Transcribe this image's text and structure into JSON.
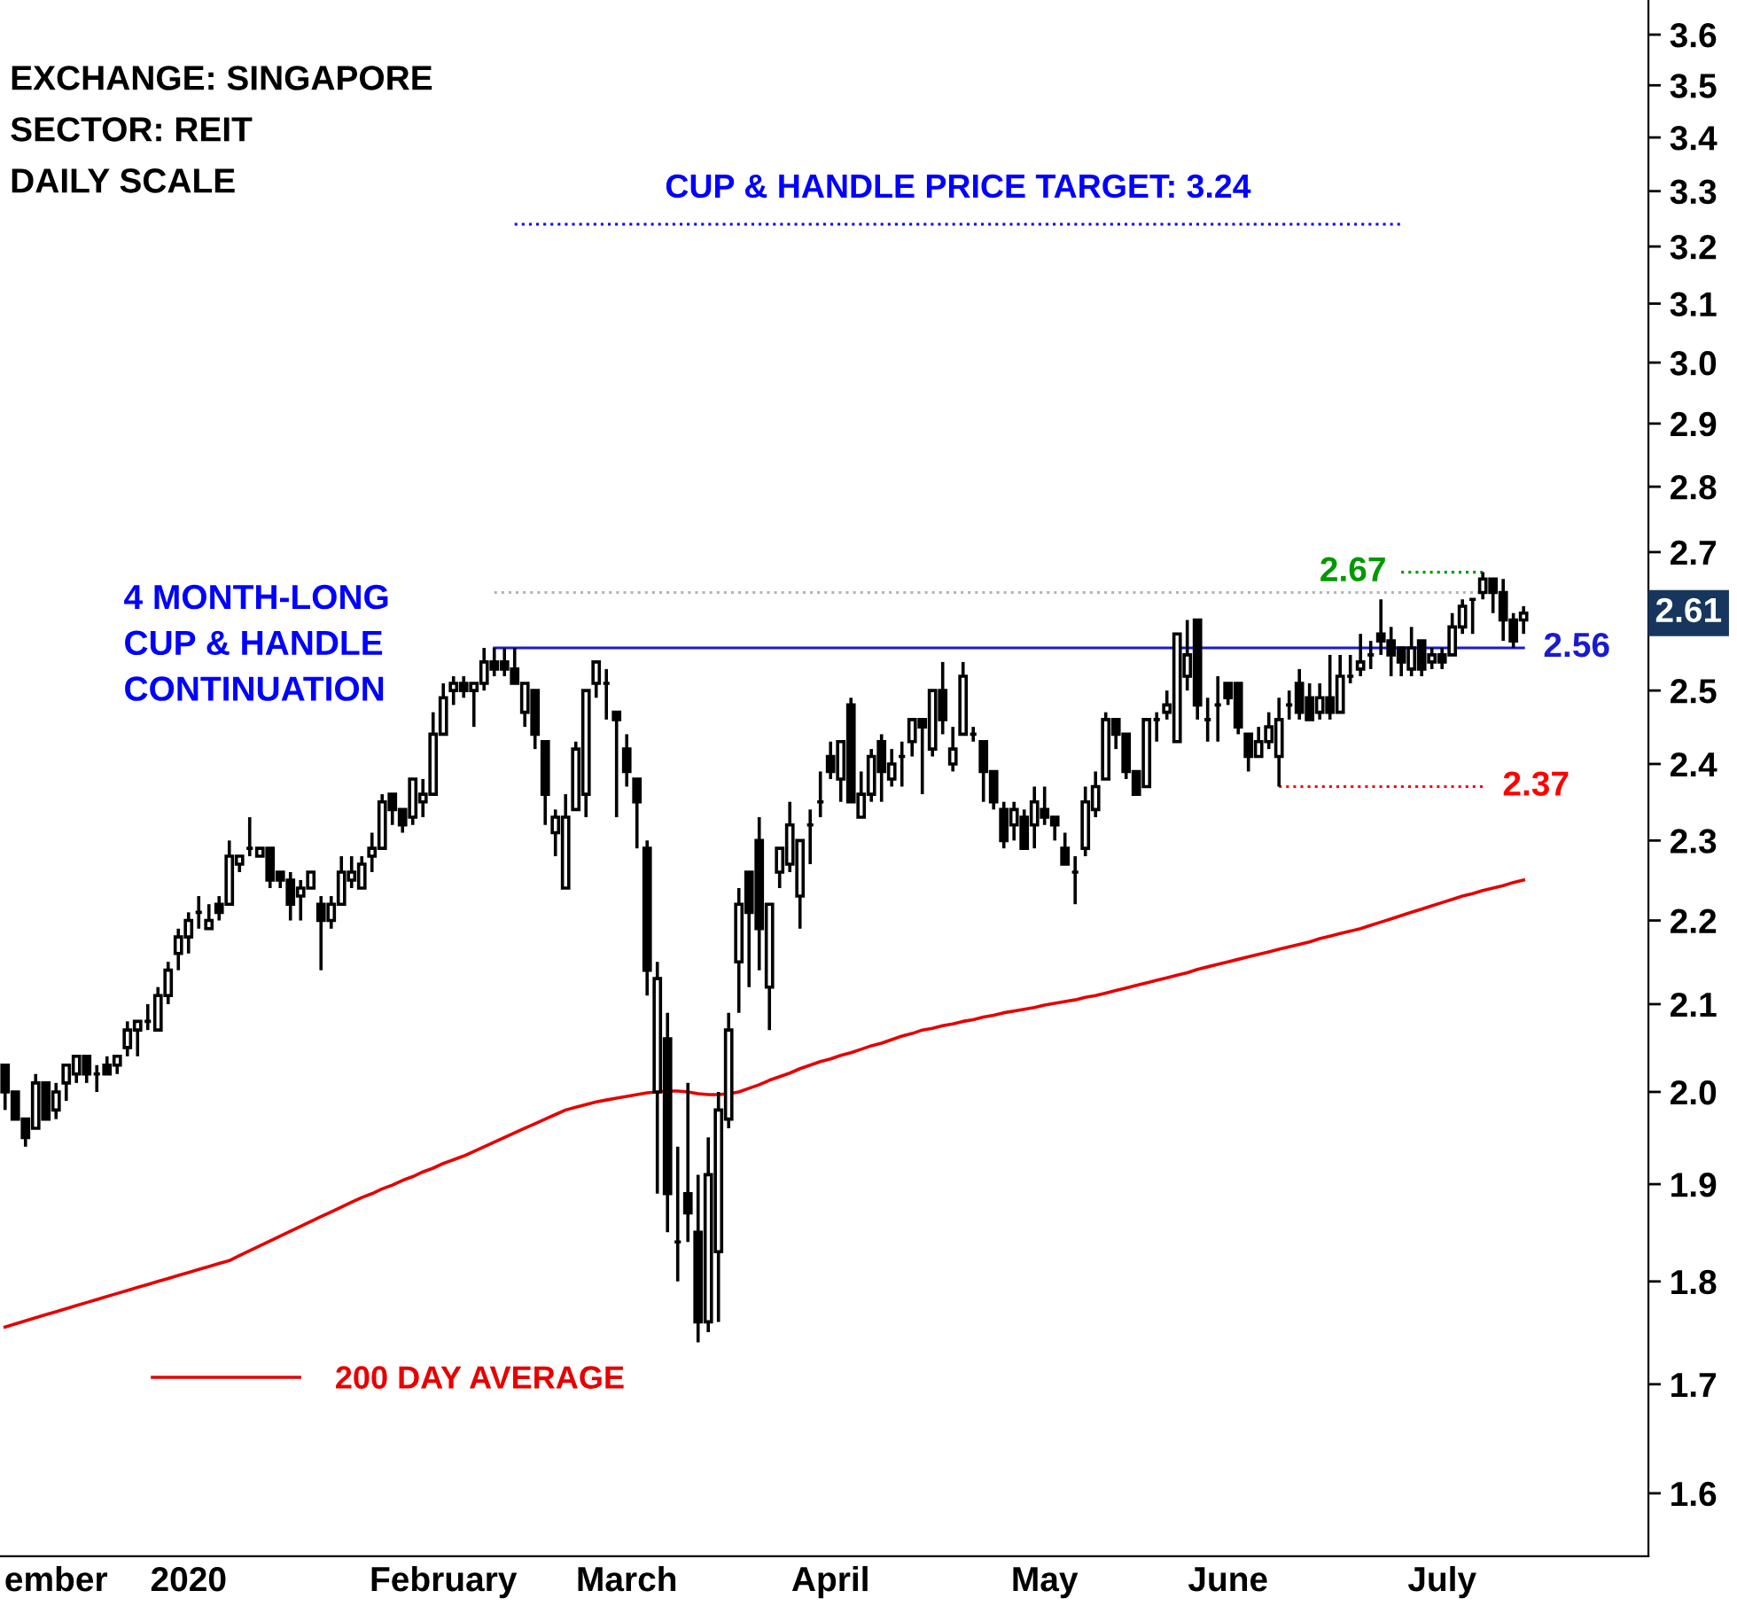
{
  "chart_data": {
    "type": "candlestick",
    "categories": [
      null,
      null,
      null,
      null,
      null,
      "ember",
      null,
      null,
      null,
      null,
      null,
      null,
      null,
      null,
      null,
      null,
      null,
      null,
      "2020",
      null,
      null,
      null,
      null,
      null,
      null,
      null,
      null,
      null,
      null,
      null,
      null,
      null,
      null,
      null,
      null,
      null,
      null,
      null,
      null,
      null,
      null,
      null,
      null,
      "February",
      null,
      null,
      null,
      null,
      null,
      null,
      null,
      null,
      null,
      null,
      null,
      null,
      null,
      null,
      null,
      null,
      null,
      "March",
      null,
      null,
      null,
      null,
      null,
      null,
      null,
      null,
      null,
      null,
      null,
      null,
      null,
      null,
      null,
      null,
      null,
      null,
      null,
      "April",
      null,
      null,
      null,
      null,
      null,
      null,
      null,
      null,
      null,
      null,
      null,
      null,
      null,
      null,
      null,
      null,
      null,
      null,
      null,
      null,
      "May",
      null,
      null,
      null,
      null,
      null,
      null,
      null,
      null,
      null,
      null,
      null,
      null,
      null,
      null,
      null,
      null,
      null,
      "June",
      null,
      null,
      null,
      null,
      null,
      null,
      null,
      null,
      null,
      null,
      null,
      null,
      null,
      null,
      null,
      null,
      null,
      null,
      null,
      null,
      "July",
      null,
      null,
      null,
      null,
      null,
      null,
      null,
      null
    ],
    "ohlc": [
      [
        2.03,
        2.03,
        1.98,
        2.0
      ],
      [
        2.0,
        2.0,
        1.97,
        1.97
      ],
      [
        1.97,
        1.97,
        1.94,
        1.95
      ],
      [
        1.96,
        2.02,
        1.96,
        2.01
      ],
      [
        2.01,
        2.01,
        1.97,
        1.97
      ],
      [
        1.98,
        2.01,
        1.97,
        2.0
      ],
      [
        2.01,
        2.03,
        1.99,
        2.03
      ],
      [
        2.02,
        2.04,
        2.01,
        2.04
      ],
      [
        2.04,
        2.04,
        2.01,
        2.02
      ],
      [
        2.02,
        2.03,
        2.0,
        2.02
      ],
      [
        2.03,
        2.04,
        2.02,
        2.02
      ],
      [
        2.03,
        2.04,
        2.02,
        2.04
      ],
      [
        2.05,
        2.08,
        2.04,
        2.07
      ],
      [
        2.07,
        2.08,
        2.04,
        2.08
      ],
      [
        2.08,
        2.1,
        2.07,
        2.08
      ],
      [
        2.07,
        2.12,
        2.07,
        2.11
      ],
      [
        2.11,
        2.15,
        2.1,
        2.14
      ],
      [
        2.16,
        2.19,
        2.14,
        2.18
      ],
      [
        2.18,
        2.21,
        2.16,
        2.2
      ],
      [
        2.21,
        2.23,
        2.19,
        2.21
      ],
      [
        2.19,
        2.22,
        2.19,
        2.2
      ],
      [
        2.22,
        2.23,
        2.2,
        2.21
      ],
      [
        2.22,
        2.3,
        2.22,
        2.28
      ],
      [
        2.27,
        2.28,
        2.26,
        2.28
      ],
      [
        2.29,
        2.33,
        2.28,
        2.29
      ],
      [
        2.28,
        2.29,
        2.28,
        2.29
      ],
      [
        2.29,
        2.29,
        2.24,
        2.25
      ],
      [
        2.26,
        2.26,
        2.24,
        2.25
      ],
      [
        2.25,
        2.26,
        2.2,
        2.22
      ],
      [
        2.23,
        2.25,
        2.2,
        2.24
      ],
      [
        2.24,
        2.26,
        2.24,
        2.26
      ],
      [
        2.22,
        2.23,
        2.14,
        2.2
      ],
      [
        2.2,
        2.23,
        2.19,
        2.22
      ],
      [
        2.22,
        2.28,
        2.22,
        2.26
      ],
      [
        2.25,
        2.28,
        2.24,
        2.26
      ],
      [
        2.24,
        2.28,
        2.24,
        2.27
      ],
      [
        2.28,
        2.31,
        2.26,
        2.29
      ],
      [
        2.29,
        2.36,
        2.29,
        2.35
      ],
      [
        2.36,
        2.36,
        2.32,
        2.34
      ],
      [
        2.34,
        2.34,
        2.31,
        2.32
      ],
      [
        2.33,
        2.38,
        2.32,
        2.38
      ],
      [
        2.35,
        2.38,
        2.33,
        2.36
      ],
      [
        2.36,
        2.47,
        2.36,
        2.44
      ],
      [
        2.44,
        2.51,
        2.44,
        2.49
      ],
      [
        2.5,
        2.52,
        2.48,
        2.51
      ],
      [
        2.51,
        2.52,
        2.49,
        2.5
      ],
      [
        2.5,
        2.51,
        2.45,
        2.51
      ],
      [
        2.51,
        2.56,
        2.5,
        2.54
      ],
      [
        2.54,
        2.56,
        2.52,
        2.53
      ],
      [
        2.54,
        2.56,
        2.52,
        2.53
      ],
      [
        2.53,
        2.56,
        2.51,
        2.51
      ],
      [
        2.47,
        2.51,
        2.45,
        2.51
      ],
      [
        2.5,
        2.5,
        2.42,
        2.44
      ],
      [
        2.43,
        2.43,
        2.32,
        2.36
      ],
      [
        2.31,
        2.34,
        2.28,
        2.33
      ],
      [
        2.24,
        2.36,
        2.24,
        2.33
      ],
      [
        2.34,
        2.43,
        2.34,
        2.42
      ],
      [
        2.36,
        2.5,
        2.33,
        2.5
      ],
      [
        2.51,
        2.54,
        2.49,
        2.54
      ],
      [
        2.51,
        2.53,
        2.46,
        2.51
      ],
      [
        2.47,
        2.47,
        2.33,
        2.46
      ],
      [
        2.42,
        2.44,
        2.37,
        2.39
      ],
      [
        2.38,
        2.38,
        2.29,
        2.35
      ],
      [
        2.29,
        2.3,
        2.11,
        2.14
      ],
      [
        2.0,
        2.15,
        1.89,
        2.13
      ],
      [
        2.06,
        2.09,
        1.85,
        1.89
      ],
      [
        1.84,
        1.94,
        1.8,
        1.84
      ],
      [
        1.89,
        2.01,
        1.84,
        1.87
      ],
      [
        1.85,
        1.91,
        1.74,
        1.76
      ],
      [
        1.76,
        1.95,
        1.75,
        1.91
      ],
      [
        1.83,
        2.0,
        1.76,
        1.98
      ],
      [
        1.97,
        2.09,
        1.96,
        2.07
      ],
      [
        2.15,
        2.24,
        2.09,
        2.22
      ],
      [
        2.26,
        2.26,
        2.12,
        2.21
      ],
      [
        2.3,
        2.33,
        2.14,
        2.19
      ],
      [
        2.12,
        2.22,
        2.07,
        2.22
      ],
      [
        2.26,
        2.29,
        2.24,
        2.29
      ],
      [
        2.27,
        2.35,
        2.26,
        2.32
      ],
      [
        2.23,
        2.3,
        2.19,
        2.3
      ],
      [
        2.32,
        2.34,
        2.27,
        2.32
      ],
      [
        2.35,
        2.39,
        2.33,
        2.35
      ],
      [
        2.41,
        2.43,
        2.38,
        2.39
      ],
      [
        2.38,
        2.43,
        2.35,
        2.43
      ],
      [
        2.48,
        2.49,
        2.35,
        2.35
      ],
      [
        2.33,
        2.39,
        2.33,
        2.36
      ],
      [
        2.36,
        2.42,
        2.35,
        2.41
      ],
      [
        2.43,
        2.44,
        2.35,
        2.39
      ],
      [
        2.38,
        2.42,
        2.37,
        2.4
      ],
      [
        2.41,
        2.43,
        2.37,
        2.41
      ],
      [
        2.43,
        2.46,
        2.41,
        2.46
      ],
      [
        2.46,
        2.46,
        2.36,
        2.45
      ],
      [
        2.42,
        2.5,
        2.41,
        2.5
      ],
      [
        2.5,
        2.54,
        2.44,
        2.46
      ],
      [
        2.4,
        2.45,
        2.39,
        2.42
      ],
      [
        2.44,
        2.54,
        2.44,
        2.52
      ],
      [
        2.44,
        2.45,
        2.43,
        2.44
      ],
      [
        2.43,
        2.43,
        2.35,
        2.39
      ],
      [
        2.39,
        2.39,
        2.34,
        2.35
      ],
      [
        2.34,
        2.35,
        2.29,
        2.3
      ],
      [
        2.32,
        2.35,
        2.3,
        2.34
      ],
      [
        2.33,
        2.34,
        2.29,
        2.29
      ],
      [
        2.32,
        2.37,
        2.29,
        2.35
      ],
      [
        2.34,
        2.37,
        2.32,
        2.33
      ],
      [
        2.33,
        2.33,
        2.3,
        2.32
      ],
      [
        2.29,
        2.31,
        2.27,
        2.27
      ],
      [
        2.26,
        2.28,
        2.22,
        2.26
      ],
      [
        2.29,
        2.37,
        2.28,
        2.35
      ],
      [
        2.34,
        2.39,
        2.33,
        2.37
      ],
      [
        2.38,
        2.47,
        2.38,
        2.46
      ],
      [
        2.46,
        2.46,
        2.42,
        2.44
      ],
      [
        2.44,
        2.44,
        2.38,
        2.39
      ],
      [
        2.39,
        2.39,
        2.36,
        2.36
      ],
      [
        2.37,
        2.46,
        2.37,
        2.46
      ],
      [
        2.46,
        2.47,
        2.43,
        2.46
      ],
      [
        2.47,
        2.5,
        2.46,
        2.48
      ],
      [
        2.43,
        2.58,
        2.43,
        2.58
      ],
      [
        2.52,
        2.6,
        2.5,
        2.55
      ],
      [
        2.6,
        2.6,
        2.46,
        2.48
      ],
      [
        2.46,
        2.49,
        2.43,
        2.46
      ],
      [
        2.48,
        2.52,
        2.43,
        2.48
      ],
      [
        2.51,
        2.51,
        2.48,
        2.49
      ],
      [
        2.51,
        2.51,
        2.44,
        2.45
      ],
      [
        2.44,
        2.44,
        2.39,
        2.41
      ],
      [
        2.41,
        2.45,
        2.41,
        2.43
      ],
      [
        2.43,
        2.47,
        2.42,
        2.45
      ],
      [
        2.41,
        2.49,
        2.37,
        2.46
      ],
      [
        2.48,
        2.5,
        2.46,
        2.48
      ],
      [
        2.51,
        2.53,
        2.46,
        2.47
      ],
      [
        2.49,
        2.51,
        2.46,
        2.46
      ],
      [
        2.47,
        2.51,
        2.46,
        2.49
      ],
      [
        2.49,
        2.55,
        2.46,
        2.47
      ],
      [
        2.47,
        2.55,
        2.47,
        2.52
      ],
      [
        2.52,
        2.55,
        2.51,
        2.52
      ],
      [
        2.53,
        2.58,
        2.52,
        2.54
      ],
      [
        2.55,
        2.57,
        2.53,
        2.55
      ],
      [
        2.58,
        2.63,
        2.55,
        2.57
      ],
      [
        2.57,
        2.59,
        2.52,
        2.55
      ],
      [
        2.56,
        2.56,
        2.52,
        2.54
      ],
      [
        2.53,
        2.59,
        2.52,
        2.56
      ],
      [
        2.57,
        2.57,
        2.52,
        2.53
      ],
      [
        2.54,
        2.56,
        2.53,
        2.55
      ],
      [
        2.55,
        2.56,
        2.53,
        2.54
      ],
      [
        2.55,
        2.61,
        2.55,
        2.59
      ],
      [
        2.59,
        2.63,
        2.58,
        2.62
      ],
      [
        2.63,
        2.63,
        2.58,
        2.63
      ],
      [
        2.64,
        2.67,
        2.63,
        2.66
      ],
      [
        2.66,
        2.66,
        2.61,
        2.64
      ],
      [
        2.64,
        2.66,
        2.57,
        2.6
      ],
      [
        2.6,
        2.61,
        2.56,
        2.57
      ],
      [
        2.6,
        2.62,
        2.58,
        2.61
      ]
    ],
    "series": [
      {
        "type": "line",
        "name": "200 DAY AVERAGE",
        "color": "#e60000",
        "line_style": "solid",
        "values": [
          1.755,
          1.758,
          1.761,
          1.764,
          1.767,
          1.77,
          1.773,
          1.776,
          1.779,
          1.782,
          1.785,
          1.788,
          1.791,
          1.794,
          1.797,
          1.8,
          1.803,
          1.806,
          1.809,
          1.812,
          1.815,
          1.818,
          1.821,
          1.826,
          1.831,
          1.836,
          1.841,
          1.846,
          1.851,
          1.856,
          1.861,
          1.866,
          1.871,
          1.876,
          1.881,
          1.886,
          1.89,
          1.895,
          1.899,
          1.904,
          1.908,
          1.913,
          1.917,
          1.922,
          1.926,
          1.93,
          1.935,
          1.94,
          1.945,
          1.95,
          1.955,
          1.96,
          1.965,
          1.97,
          1.975,
          1.98,
          1.983,
          1.986,
          1.989,
          1.991,
          1.993,
          1.995,
          1.997,
          1.999,
          2.0,
          2.001,
          2.001,
          2.0,
          1.998,
          1.997,
          1.997,
          1.998,
          2.0,
          2.004,
          2.008,
          2.013,
          2.017,
          2.021,
          2.026,
          2.03,
          2.034,
          2.037,
          2.041,
          2.044,
          2.048,
          2.052,
          2.055,
          2.059,
          2.063,
          2.066,
          2.07,
          2.072,
          2.075,
          2.077,
          2.08,
          2.082,
          2.085,
          2.087,
          2.09,
          2.092,
          2.094,
          2.096,
          2.099,
          2.101,
          2.103,
          2.105,
          2.108,
          2.11,
          2.113,
          2.116,
          2.119,
          2.122,
          2.125,
          2.128,
          2.131,
          2.134,
          2.137,
          2.141,
          2.144,
          2.147,
          2.15,
          2.153,
          2.156,
          2.159,
          2.162,
          2.165,
          2.168,
          2.171,
          2.174,
          2.178,
          2.181,
          2.184,
          2.187,
          2.19,
          2.194,
          2.198,
          2.202,
          2.206,
          2.21,
          2.214,
          2.218,
          2.222,
          2.226,
          2.23,
          2.233,
          2.237,
          2.24,
          2.243,
          2.247,
          2.25
        ]
      },
      {
        "type": "line",
        "name": "CUP & HANDLE PRICE TARGET: 3.24",
        "color": "#0000ff",
        "line_style": "dotted",
        "values": [
          null,
          null,
          null,
          null,
          null,
          null,
          null,
          null,
          null,
          null,
          null,
          null,
          null,
          null,
          null,
          null,
          null,
          null,
          null,
          null,
          null,
          null,
          null,
          null,
          null,
          null,
          null,
          null,
          null,
          null,
          null,
          null,
          null,
          null,
          null,
          null,
          null,
          null,
          null,
          null,
          null,
          null,
          null,
          null,
          null,
          null,
          null,
          null,
          null,
          null,
          3.24,
          3.24,
          3.24,
          3.24,
          3.24,
          3.24,
          3.24,
          3.24,
          3.24,
          3.24,
          3.24,
          3.24,
          3.24,
          3.24,
          3.24,
          3.24,
          3.24,
          3.24,
          3.24,
          3.24,
          3.24,
          3.24,
          3.24,
          3.24,
          3.24,
          3.24,
          3.24,
          3.24,
          3.24,
          3.24,
          3.24,
          3.24,
          3.24,
          3.24,
          3.24,
          3.24,
          3.24,
          3.24,
          3.24,
          3.24,
          3.24,
          3.24,
          3.24,
          3.24,
          3.24,
          3.24,
          3.24,
          3.24,
          3.24,
          3.24,
          3.24,
          3.24,
          3.24,
          3.24,
          3.24,
          3.24,
          3.24,
          3.24,
          3.24,
          3.24,
          3.24,
          3.24,
          3.24,
          3.24,
          3.24,
          3.24,
          3.24,
          3.24,
          3.24,
          3.24,
          3.24,
          3.24,
          3.24,
          3.24,
          3.24,
          3.24,
          3.24,
          3.24,
          3.24,
          3.24,
          3.24,
          3.24,
          3.24,
          3.24,
          3.24,
          3.24,
          3.24,
          3.24,
          null,
          null,
          null,
          null,
          null,
          null,
          null,
          null,
          null,
          null,
          null,
          null
        ]
      },
      {
        "type": "line",
        "color": "#1a1ad0",
        "line_style": "solid",
        "values": [
          null,
          null,
          null,
          null,
          null,
          null,
          null,
          null,
          null,
          null,
          null,
          null,
          null,
          null,
          null,
          null,
          null,
          null,
          null,
          null,
          null,
          null,
          null,
          null,
          null,
          null,
          null,
          null,
          null,
          null,
          null,
          null,
          null,
          null,
          null,
          null,
          null,
          null,
          null,
          null,
          null,
          null,
          null,
          null,
          null,
          null,
          null,
          null,
          2.56,
          2.56,
          2.56,
          2.56,
          2.56,
          2.56,
          2.56,
          2.56,
          2.56,
          2.56,
          2.56,
          2.56,
          2.56,
          2.56,
          2.56,
          2.56,
          2.56,
          2.56,
          2.56,
          2.56,
          2.56,
          2.56,
          2.56,
          2.56,
          2.56,
          2.56,
          2.56,
          2.56,
          2.56,
          2.56,
          2.56,
          2.56,
          2.56,
          2.56,
          2.56,
          2.56,
          2.56,
          2.56,
          2.56,
          2.56,
          2.56,
          2.56,
          2.56,
          2.56,
          2.56,
          2.56,
          2.56,
          2.56,
          2.56,
          2.56,
          2.56,
          2.56,
          2.56,
          2.56,
          2.56,
          2.56,
          2.56,
          2.56,
          2.56,
          2.56,
          2.56,
          2.56,
          2.56,
          2.56,
          2.56,
          2.56,
          2.56,
          2.56,
          2.56,
          2.56,
          2.56,
          2.56,
          2.56,
          2.56,
          2.56,
          2.56,
          2.56,
          2.56,
          2.56,
          2.56,
          2.56,
          2.56,
          2.56,
          2.56,
          2.56,
          2.56,
          2.56,
          2.56,
          2.56,
          2.56,
          2.56,
          2.56,
          2.56,
          2.56,
          2.56,
          2.56,
          2.56,
          2.56,
          2.56,
          2.56,
          2.56,
          2.56
        ],
        "value_labels": [
          null,
          null,
          null,
          null,
          null,
          null,
          null,
          null,
          null,
          null,
          null,
          null,
          null,
          null,
          null,
          null,
          null,
          null,
          null,
          null,
          null,
          null,
          null,
          null,
          null,
          null,
          null,
          null,
          null,
          null,
          null,
          null,
          null,
          null,
          null,
          null,
          null,
          null,
          null,
          null,
          null,
          null,
          null,
          null,
          null,
          null,
          null,
          null,
          null,
          null,
          null,
          null,
          null,
          null,
          null,
          null,
          null,
          null,
          null,
          null,
          null,
          null,
          null,
          null,
          null,
          null,
          null,
          null,
          null,
          null,
          null,
          null,
          null,
          null,
          null,
          null,
          null,
          null,
          null,
          null,
          null,
          null,
          null,
          null,
          null,
          null,
          null,
          null,
          null,
          null,
          null,
          null,
          null,
          null,
          null,
          null,
          null,
          null,
          null,
          null,
          null,
          null,
          null,
          null,
          null,
          null,
          null,
          null,
          null,
          null,
          null,
          null,
          null,
          null,
          null,
          null,
          null,
          null,
          null,
          null,
          null,
          null,
          null,
          null,
          null,
          null,
          null,
          null,
          null,
          null,
          null,
          null,
          null,
          null,
          null,
          null,
          null,
          null,
          null,
          null,
          null,
          null,
          null,
          null,
          null,
          null,
          null,
          null,
          null,
          "2.56"
        ]
      },
      {
        "type": "line",
        "color": "#b4b4b4",
        "line_style": "dotted",
        "values": [
          null,
          null,
          null,
          null,
          null,
          null,
          null,
          null,
          null,
          null,
          null,
          null,
          null,
          null,
          null,
          null,
          null,
          null,
          null,
          null,
          null,
          null,
          null,
          null,
          null,
          null,
          null,
          null,
          null,
          null,
          null,
          null,
          null,
          null,
          null,
          null,
          null,
          null,
          null,
          null,
          null,
          null,
          null,
          null,
          null,
          null,
          null,
          null,
          2.64,
          2.64,
          2.64,
          2.64,
          2.64,
          2.64,
          2.64,
          2.64,
          2.64,
          2.64,
          2.64,
          2.64,
          2.64,
          2.64,
          2.64,
          2.64,
          2.64,
          2.64,
          2.64,
          2.64,
          2.64,
          2.64,
          2.64,
          2.64,
          2.64,
          2.64,
          2.64,
          2.64,
          2.64,
          2.64,
          2.64,
          2.64,
          2.64,
          2.64,
          2.64,
          2.64,
          2.64,
          2.64,
          2.64,
          2.64,
          2.64,
          2.64,
          2.64,
          2.64,
          2.64,
          2.64,
          2.64,
          2.64,
          2.64,
          2.64,
          2.64,
          2.64,
          2.64,
          2.64,
          2.64,
          2.64,
          2.64,
          2.64,
          2.64,
          2.64,
          2.64,
          2.64,
          2.64,
          2.64,
          2.64,
          2.64,
          2.64,
          2.64,
          2.64,
          2.64,
          2.64,
          2.64,
          2.64,
          2.64,
          2.64,
          2.64,
          2.64,
          2.64,
          2.64,
          2.64,
          2.64,
          2.64,
          2.64,
          2.64,
          2.64,
          2.64,
          2.64,
          2.64,
          2.64,
          2.64,
          2.64,
          2.64,
          2.64,
          2.64,
          2.64,
          2.64,
          2.64,
          2.64,
          null,
          null,
          null,
          null
        ]
      },
      {
        "type": "line",
        "color": "#009900",
        "line_style": "dotted",
        "values": [
          null,
          null,
          null,
          null,
          null,
          null,
          null,
          null,
          null,
          null,
          null,
          null,
          null,
          null,
          null,
          null,
          null,
          null,
          null,
          null,
          null,
          null,
          null,
          null,
          null,
          null,
          null,
          null,
          null,
          null,
          null,
          null,
          null,
          null,
          null,
          null,
          null,
          null,
          null,
          null,
          null,
          null,
          null,
          null,
          null,
          null,
          null,
          null,
          null,
          null,
          null,
          null,
          null,
          null,
          null,
          null,
          null,
          null,
          null,
          null,
          null,
          null,
          null,
          null,
          null,
          null,
          null,
          null,
          null,
          null,
          null,
          null,
          null,
          null,
          null,
          null,
          null,
          null,
          null,
          null,
          null,
          null,
          null,
          null,
          null,
          null,
          null,
          null,
          null,
          null,
          null,
          null,
          null,
          null,
          null,
          null,
          null,
          null,
          null,
          null,
          null,
          null,
          null,
          null,
          null,
          null,
          null,
          null,
          null,
          null,
          null,
          null,
          null,
          null,
          null,
          null,
          null,
          null,
          null,
          null,
          null,
          null,
          null,
          null,
          null,
          null,
          null,
          null,
          null,
          null,
          null,
          null,
          null,
          null,
          null,
          null,
          null,
          2.67,
          2.67,
          2.67,
          2.67,
          2.67,
          2.67,
          2.67,
          2.67,
          2.67,
          null,
          null,
          null,
          null
        ],
        "value_labels": [
          null,
          null,
          null,
          null,
          null,
          null,
          null,
          null,
          null,
          null,
          null,
          null,
          null,
          null,
          null,
          null,
          null,
          null,
          null,
          null,
          null,
          null,
          null,
          null,
          null,
          null,
          null,
          null,
          null,
          null,
          null,
          null,
          null,
          null,
          null,
          null,
          null,
          null,
          null,
          null,
          null,
          null,
          null,
          null,
          null,
          null,
          null,
          null,
          null,
          null,
          null,
          null,
          null,
          null,
          null,
          null,
          null,
          null,
          null,
          null,
          null,
          null,
          null,
          null,
          null,
          null,
          null,
          null,
          null,
          null,
          null,
          null,
          null,
          null,
          null,
          null,
          null,
          null,
          null,
          null,
          null,
          null,
          null,
          null,
          null,
          null,
          null,
          null,
          null,
          null,
          null,
          null,
          null,
          null,
          null,
          null,
          null,
          null,
          null,
          null,
          null,
          null,
          null,
          null,
          null,
          null,
          null,
          null,
          null,
          null,
          null,
          null,
          null,
          null,
          null,
          null,
          null,
          null,
          null,
          null,
          null,
          null,
          null,
          null,
          null,
          null,
          null,
          null,
          null,
          null,
          null,
          null,
          null,
          null,
          null,
          null,
          null,
          "2.67",
          null,
          null,
          null,
          null,
          null,
          null,
          null,
          null,
          null,
          null,
          null,
          null
        ]
      },
      {
        "type": "line",
        "color": "#ff0000",
        "line_style": "dotted",
        "values": [
          null,
          null,
          null,
          null,
          null,
          null,
          null,
          null,
          null,
          null,
          null,
          null,
          null,
          null,
          null,
          null,
          null,
          null,
          null,
          null,
          null,
          null,
          null,
          null,
          null,
          null,
          null,
          null,
          null,
          null,
          null,
          null,
          null,
          null,
          null,
          null,
          null,
          null,
          null,
          null,
          null,
          null,
          null,
          null,
          null,
          null,
          null,
          null,
          null,
          null,
          null,
          null,
          null,
          null,
          null,
          null,
          null,
          null,
          null,
          null,
          null,
          null,
          null,
          null,
          null,
          null,
          null,
          null,
          null,
          null,
          null,
          null,
          null,
          null,
          null,
          null,
          null,
          null,
          null,
          null,
          null,
          null,
          null,
          null,
          null,
          null,
          null,
          null,
          null,
          null,
          null,
          null,
          null,
          null,
          null,
          null,
          null,
          null,
          null,
          null,
          null,
          null,
          null,
          null,
          null,
          null,
          null,
          null,
          null,
          null,
          null,
          null,
          null,
          null,
          null,
          null,
          null,
          null,
          null,
          null,
          null,
          null,
          null,
          null,
          null,
          2.37,
          2.37,
          2.37,
          2.37,
          2.37,
          2.37,
          2.37,
          2.37,
          2.37,
          2.37,
          2.37,
          2.37,
          2.37,
          2.37,
          2.37,
          2.37,
          2.37,
          2.37,
          2.37,
          2.37,
          2.37,
          null,
          null,
          null,
          null
        ],
        "value_labels": [
          null,
          null,
          null,
          null,
          null,
          null,
          null,
          null,
          null,
          null,
          null,
          null,
          null,
          null,
          null,
          null,
          null,
          null,
          null,
          null,
          null,
          null,
          null,
          null,
          null,
          null,
          null,
          null,
          null,
          null,
          null,
          null,
          null,
          null,
          null,
          null,
          null,
          null,
          null,
          null,
          null,
          null,
          null,
          null,
          null,
          null,
          null,
          null,
          null,
          null,
          null,
          null,
          null,
          null,
          null,
          null,
          null,
          null,
          null,
          null,
          null,
          null,
          null,
          null,
          null,
          null,
          null,
          null,
          null,
          null,
          null,
          null,
          null,
          null,
          null,
          null,
          null,
          null,
          null,
          null,
          null,
          null,
          null,
          null,
          null,
          null,
          null,
          null,
          null,
          null,
          null,
          null,
          null,
          null,
          null,
          null,
          null,
          null,
          null,
          null,
          null,
          null,
          null,
          null,
          null,
          null,
          null,
          null,
          null,
          null,
          null,
          null,
          null,
          null,
          null,
          null,
          null,
          null,
          null,
          null,
          null,
          null,
          null,
          null,
          null,
          null,
          null,
          null,
          null,
          null,
          null,
          null,
          null,
          null,
          null,
          null,
          null,
          null,
          null,
          null,
          null,
          null,
          null,
          null,
          null,
          "2.37",
          null,
          null,
          null,
          null
        ]
      }
    ],
    "log": "y",
    "ylim": [
      1.545,
      3.67
    ],
    "yticks": [
      1.6,
      1.7,
      1.8,
      1.9,
      {
        "value": 2,
        "label": "2.0"
      },
      2.1,
      2.2,
      2.3,
      2.4,
      2.5,
      2.7,
      2.8,
      2.9,
      {
        "value": 3,
        "label": "3.0"
      },
      3.1,
      3.2,
      3.3,
      3.4,
      3.5,
      3.6
    ],
    "legend": "bottom left",
    "annotations": [
      "EXCHANGE: SINGAPORE",
      "SECTOR: REIT",
      "DAILY SCALE",
      "4 MONTH-LONG\nCUP & HANDLE\nCONTINUATION",
      "2.61"
    ]
  }
}
